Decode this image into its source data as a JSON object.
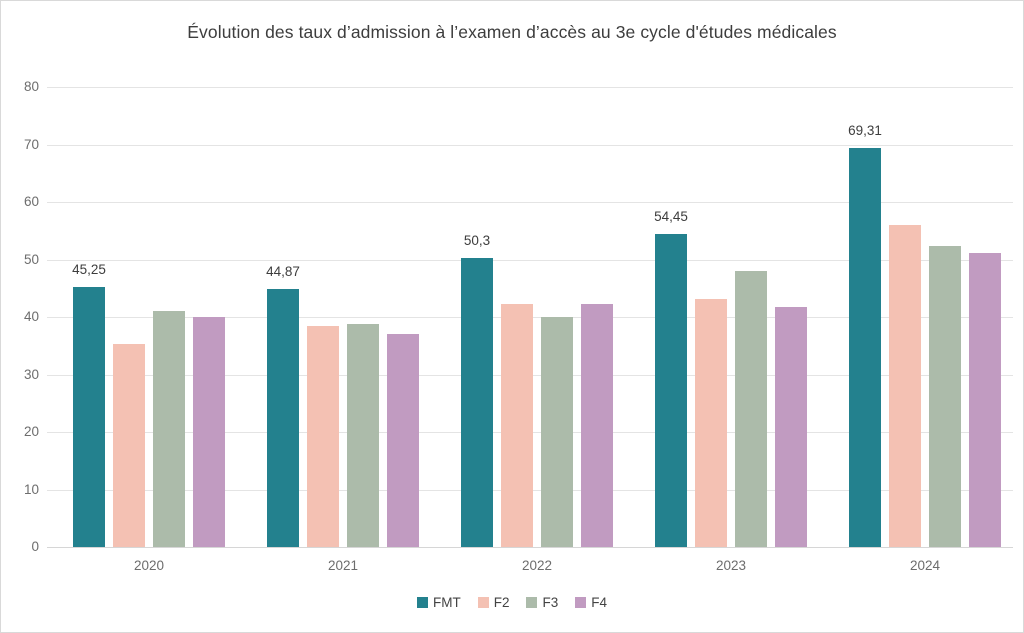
{
  "chart_data": {
    "type": "bar",
    "title": "Évolution des taux d’admission à l’examen d’accès au 3e cycle d'études médicales",
    "categories": [
      "2020",
      "2021",
      "2022",
      "2023",
      "2024"
    ],
    "series": [
      {
        "name": "FMT",
        "color": "#23818e",
        "values": [
          45.25,
          44.87,
          50.3,
          54.45,
          69.31
        ],
        "labels": [
          "45,25",
          "44,87",
          "50,3",
          "54,45",
          "69,31"
        ]
      },
      {
        "name": "F2",
        "color": "#f4c1b3",
        "values": [
          35.3,
          38.4,
          42.2,
          43.2,
          56
        ]
      },
      {
        "name": "F3",
        "color": "#acbbaa",
        "values": [
          41,
          38.7,
          40,
          48,
          52.3
        ]
      },
      {
        "name": "F4",
        "color": "#c19bc1",
        "values": [
          40,
          37,
          42.2,
          41.7,
          51.2
        ]
      }
    ],
    "xlabel": "",
    "ylabel": "",
    "ylim": [
      0,
      80
    ],
    "ytick_step": 10,
    "grid": true,
    "legend_position": "bottom",
    "background_color": "#ffffff",
    "gridline_color": "#e4e4e4",
    "text_color": "#3d3d3d",
    "axis_text_color": "#6d6d6d"
  }
}
